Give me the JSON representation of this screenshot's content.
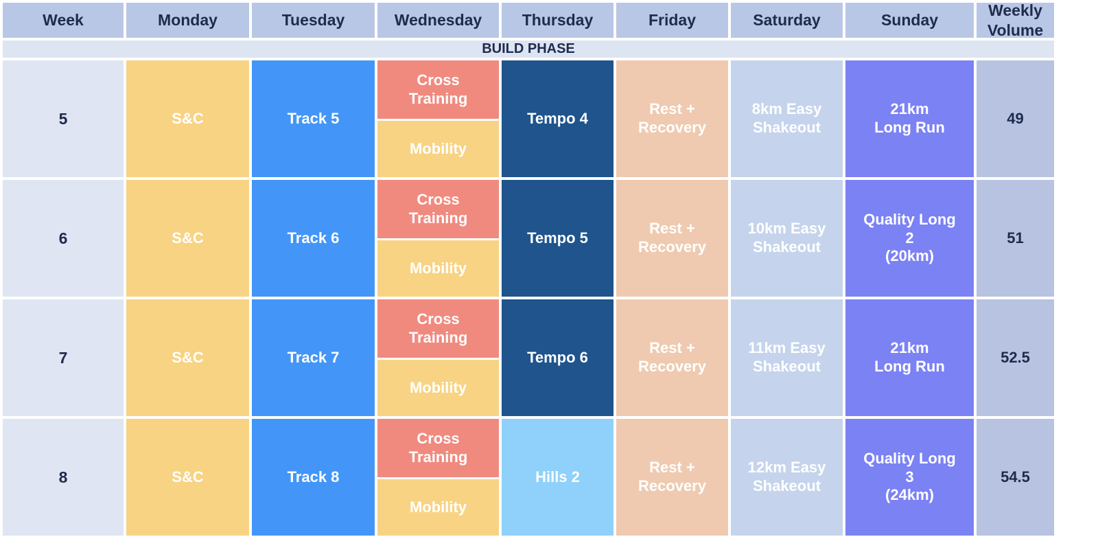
{
  "header": {
    "week": "Week",
    "monday": "Monday",
    "tuesday": "Tuesday",
    "wednesday": "Wednesday",
    "thursday": "Thursday",
    "friday": "Friday",
    "saturday": "Saturday",
    "sunday": "Sunday",
    "volume": "Weekly\nVolume"
  },
  "phase": "BUILD PHASE",
  "rows": [
    {
      "week": "5",
      "monday": "S&C",
      "tuesday": "Track 5",
      "wed_top": "Cross\nTraining",
      "wed_bottom": "Mobility",
      "thursday": "Tempo 4",
      "friday": "Rest +\nRecovery",
      "saturday": "8km Easy\nShakeout",
      "sunday": "21km\nLong Run",
      "volume": "49"
    },
    {
      "week": "6",
      "monday": "S&C",
      "tuesday": "Track 6",
      "wed_top": "Cross\nTraining",
      "wed_bottom": "Mobility",
      "thursday": "Tempo 5",
      "friday": "Rest +\nRecovery",
      "saturday": "10km Easy\nShakeout",
      "sunday": "Quality Long\n2\n(20km)",
      "volume": "51"
    },
    {
      "week": "7",
      "monday": "S&C",
      "tuesday": "Track 7",
      "wed_top": "Cross\nTraining",
      "wed_bottom": "Mobility",
      "thursday": "Tempo 6",
      "friday": "Rest +\nRecovery",
      "saturday": "11km Easy\nShakeout",
      "sunday": "21km\nLong Run",
      "volume": "52.5"
    },
    {
      "week": "8",
      "monday": "S&C",
      "tuesday": "Track 8",
      "wed_top": "Cross\nTraining",
      "wed_bottom": "Mobility",
      "thursday": "Hills 2",
      "friday": "Rest +\nRecovery",
      "saturday": "12km Easy\nShakeout",
      "sunday": "Quality Long\n3\n(24km)",
      "volume": "54.5"
    }
  ],
  "colors": {
    "header_bg": "#b9c7e6",
    "strength": "#f7d383",
    "track": "#4396f7",
    "cross_training": "#f08a7f",
    "tempo": "#1f548d",
    "hills": "#8fd1fa",
    "rest": "#efcab0",
    "easy": "#c5d4ec",
    "long_run": "#7b82f4",
    "volume_bg": "#b7c3e1"
  }
}
